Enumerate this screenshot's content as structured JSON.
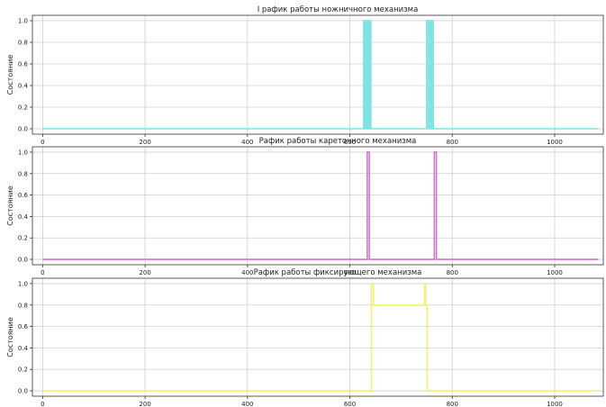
{
  "chart_data": [
    {
      "type": "line",
      "title": "I рафик работы ножничного механизма",
      "xlabel": "",
      "ylabel": "Состояние",
      "xlim": [
        -20,
        1095
      ],
      "ylim": [
        -0.05,
        1.05
      ],
      "xticks": [
        0,
        200,
        400,
        600,
        800,
        1000
      ],
      "yticks": [
        0.0,
        0.2,
        0.4,
        0.6,
        0.8,
        1.0
      ],
      "xtick_labels": [
        "0",
        "200",
        "400",
        "600",
        "800",
        "1000"
      ],
      "ytick_labels": [
        "0.0",
        "0.2",
        "0.4",
        "0.6",
        "0.8",
        "1.0"
      ],
      "grid": true,
      "color": "#7ee3e3",
      "x": [
        0,
        627,
        627,
        629,
        629,
        631,
        631,
        633,
        633,
        635,
        635,
        637,
        637,
        639,
        639,
        641,
        641,
        750,
        750,
        753,
        753,
        756,
        756,
        758,
        758,
        760,
        760,
        763,
        763,
        1085
      ],
      "y": [
        0,
        0,
        1,
        1,
        0,
        0,
        1,
        1,
        0,
        0,
        1,
        1,
        0,
        0,
        1,
        1,
        0,
        0,
        1,
        1,
        0,
        0,
        1,
        1,
        0,
        0,
        1,
        1,
        0,
        0
      ]
    },
    {
      "type": "line",
      "title": "Рафик работы кареточного механизма",
      "xlabel": "",
      "ylabel": "Состояние",
      "xlim": [
        -20,
        1095
      ],
      "ylim": [
        -0.05,
        1.05
      ],
      "xticks": [
        0,
        200,
        400,
        600,
        800,
        1000
      ],
      "yticks": [
        0.0,
        0.2,
        0.4,
        0.6,
        0.8,
        1.0
      ],
      "xtick_labels": [
        "0",
        "200",
        "400",
        "600",
        "800",
        "1000"
      ],
      "ytick_labels": [
        "0.0",
        "0.2",
        "0.4",
        "0.6",
        "0.8",
        "1.0"
      ],
      "grid": true,
      "color": "#cc77cc",
      "x": [
        0,
        634,
        634,
        638,
        638,
        765,
        765,
        769,
        769,
        1085
      ],
      "y": [
        0,
        0,
        1,
        1,
        0,
        0,
        1,
        1,
        0,
        0
      ]
    },
    {
      "type": "line",
      "title": "Рафик работы фиксирующего механизма",
      "xlabel": "",
      "ylabel": "Состояние",
      "xlim": [
        -20,
        1095
      ],
      "ylim": [
        -0.05,
        1.05
      ],
      "xticks": [
        0,
        200,
        400,
        600,
        800,
        1000
      ],
      "yticks": [
        0.0,
        0.2,
        0.4,
        0.6,
        0.8,
        1.0
      ],
      "xtick_labels": [
        "0",
        "200",
        "400",
        "600",
        "800",
        "1000"
      ],
      "ytick_labels": [
        "0.0",
        "0.2",
        "0.4",
        "0.6",
        "0.8",
        "1.0"
      ],
      "grid": true,
      "color": "#f2ee7a",
      "x": [
        0,
        642,
        642,
        646,
        646,
        746,
        746,
        748,
        748,
        751,
        751,
        1085
      ],
      "y": [
        0,
        0,
        1,
        1,
        0.8,
        0.8,
        1,
        1,
        0.8,
        0.8,
        0,
        0
      ]
    }
  ]
}
